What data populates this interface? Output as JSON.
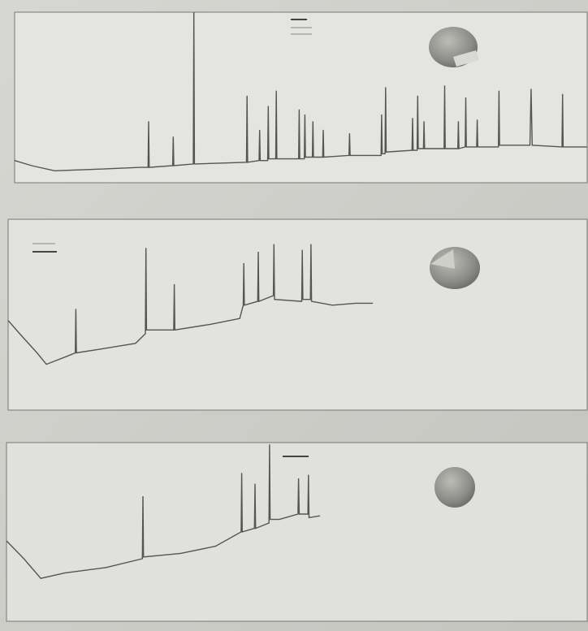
{
  "chart_data": [
    {
      "type": "line",
      "color": "#555555",
      "xlim": [
        0,
        100
      ],
      "ylim": [
        0,
        100
      ],
      "x": [
        0,
        3,
        7,
        15,
        22,
        23.3,
        23.4,
        23.5,
        27.6,
        27.7,
        27.8,
        31.2,
        31.3,
        31.4,
        40.5,
        40.6,
        40.7,
        42.7,
        42.8,
        42.9,
        44.2,
        44.3,
        44.4,
        45.6,
        45.7,
        45.8,
        49.6,
        49.7,
        49.8,
        50.6,
        50.7,
        50.8,
        52,
        52.1,
        52.2,
        53.8,
        53.9,
        54,
        58.4,
        58.5,
        58.6,
        64,
        64.1,
        64.2,
        64.7,
        64.8,
        64.9,
        69.4,
        69.5,
        69.6,
        70.3,
        70.4,
        70.5,
        71.4,
        71.5,
        71.6,
        75,
        75.1,
        75.2,
        77.4,
        77.5,
        77.6,
        78.7,
        78.8,
        78.9,
        80.7,
        80.8,
        80.9,
        84.5,
        84.6,
        84.7,
        90,
        90.2,
        90.4,
        95.6,
        95.7,
        95.8,
        100
      ],
      "values": [
        13,
        10,
        7,
        8,
        9,
        9,
        36,
        9,
        10,
        27,
        10,
        11,
        100,
        11,
        12,
        51,
        12,
        13,
        31,
        13,
        13,
        45,
        14,
        14,
        54,
        14,
        14,
        43,
        14,
        14,
        40,
        15,
        15,
        36,
        15,
        15,
        31,
        15,
        16,
        29,
        16,
        16,
        40,
        17,
        17,
        56,
        18,
        19,
        38,
        19,
        19,
        51,
        20,
        20,
        36,
        20,
        20,
        57,
        20,
        20,
        36,
        20,
        21,
        50,
        21,
        21,
        37,
        21,
        21,
        54,
        22,
        22,
        55,
        22,
        21,
        52,
        21,
        21
      ]
    },
    {
      "type": "line",
      "color": "#555555",
      "xlim": [
        0,
        100
      ],
      "ylim": [
        0,
        100
      ],
      "x": [
        0,
        2,
        5,
        6.6,
        10,
        11.6,
        11.7,
        11.8,
        16,
        22,
        23.7,
        23.8,
        23.9,
        28.6,
        28.7,
        28.8,
        35,
        40,
        40.6,
        40.7,
        40.8,
        43.1,
        43.2,
        43.3,
        45.8,
        45.9,
        46,
        50.7,
        50.8,
        50.9,
        52.2,
        52.3,
        52.4,
        56,
        60,
        63
      ],
      "values": [
        47,
        40,
        30,
        24,
        28,
        30,
        53,
        30,
        32,
        35,
        40,
        85,
        42,
        42,
        66,
        42,
        45,
        48,
        55,
        77,
        55,
        57,
        83,
        57,
        60,
        87,
        58,
        57,
        84,
        58,
        58,
        87,
        57,
        55,
        56,
        56
      ]
    },
    {
      "type": "line",
      "color": "#555555",
      "xlim": [
        0,
        100
      ],
      "ylim": [
        0,
        100
      ],
      "x": [
        0,
        3,
        5.9,
        10,
        17,
        23.4,
        23.5,
        23.6,
        30,
        36,
        40.4,
        40.5,
        40.6,
        42.7,
        42.8,
        42.9,
        45.2,
        45.3,
        45.4,
        47,
        50.2,
        50.3,
        50.4,
        51.9,
        52,
        52.1,
        54
      ],
      "values": [
        45,
        35,
        24,
        27,
        30,
        35,
        70,
        36,
        38,
        42,
        50,
        83,
        50,
        52,
        77,
        52,
        55,
        99,
        57,
        57,
        60,
        80,
        60,
        60,
        82,
        58,
        59
      ]
    }
  ]
}
